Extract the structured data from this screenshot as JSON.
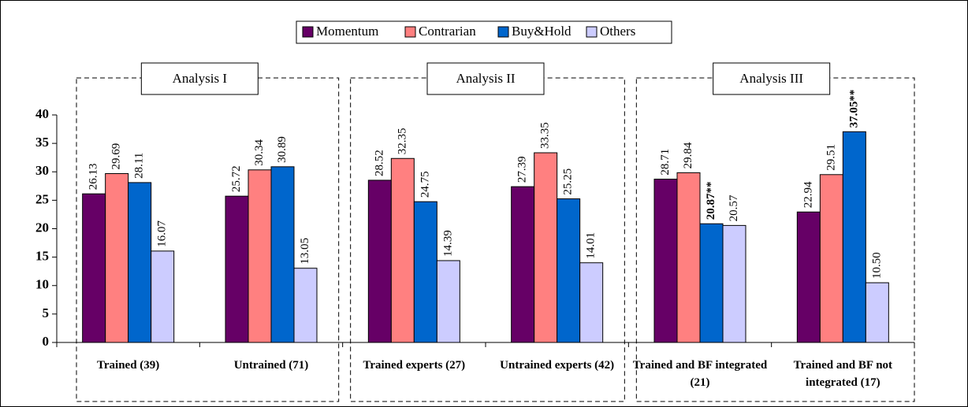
{
  "chart_data": {
    "type": "bar",
    "categories": [
      "Trained (39)",
      "Untrained (71)",
      "Trained experts (27)",
      "Untrained experts (42)",
      "Trained and BF integrated (21)",
      "Trained and BF not integrated (17)"
    ],
    "annotations": [
      "Analysis I",
      "Analysis II",
      "Analysis III"
    ],
    "series": [
      {
        "name": "Momentum",
        "color": "#660066",
        "values": [
          26.13,
          25.72,
          28.52,
          27.39,
          28.71,
          22.94
        ],
        "value_labels": [
          "26.13",
          "25.72",
          "28.52",
          "27.39",
          "28.71",
          "22.94"
        ]
      },
      {
        "name": "Contrarian",
        "color": "#ff8080",
        "values": [
          29.69,
          30.34,
          32.35,
          33.35,
          29.84,
          29.51
        ],
        "value_labels": [
          "29.69",
          "30.34",
          "32.35",
          "33.35",
          "29.84",
          "29.51"
        ]
      },
      {
        "name": "Buy&Hold",
        "color": "#0066cc",
        "values": [
          28.11,
          30.89,
          24.75,
          25.25,
          20.87,
          37.05
        ],
        "value_labels": [
          "28.11",
          "30.89",
          "24.75",
          "25.25",
          "20.87**",
          "37.05**"
        ]
      },
      {
        "name": "Others",
        "color": "#ccccff",
        "values": [
          16.07,
          13.05,
          14.39,
          14.01,
          20.57,
          10.5
        ],
        "value_labels": [
          "16.07",
          "13.05",
          "14.39",
          "14.01",
          "20.57",
          "10.50"
        ]
      }
    ],
    "ylim": [
      0,
      40
    ],
    "yticks": [
      0,
      5,
      10,
      15,
      20,
      25,
      30,
      35,
      40
    ],
    "legend": "top"
  }
}
